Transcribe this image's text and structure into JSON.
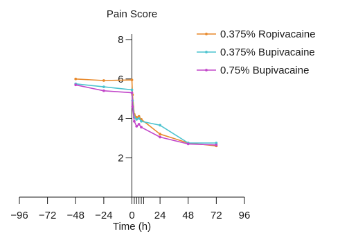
{
  "chart_data": {
    "type": "line",
    "ylabel": "Pain Score",
    "xlabel": "Time (h)",
    "xlim": [
      -96,
      96
    ],
    "ylim": [
      0,
      8
    ],
    "x_ticks": [
      -96,
      -72,
      -48,
      -24,
      0,
      24,
      48,
      72,
      96
    ],
    "x_tick_labels": [
      "−96",
      "−72",
      "−48",
      "−24",
      "0",
      "24",
      "48",
      "72",
      "96"
    ],
    "x_minor_ticks": [
      2,
      4,
      6,
      8,
      10
    ],
    "y_ticks": [
      2,
      4,
      6,
      8
    ],
    "y_tick_labels": [
      "2",
      "4",
      "6",
      "8"
    ],
    "grid": false,
    "legend_position": "top-right",
    "series": [
      {
        "name": "0.375% Ropivacaine",
        "color": "#e8892b",
        "points": [
          [
            -48,
            6.0
          ],
          [
            -24,
            5.92
          ],
          [
            0,
            5.95
          ],
          [
            0.5,
            5.2
          ],
          [
            2,
            4.2
          ],
          [
            4,
            4.05
          ],
          [
            6,
            4.1
          ],
          [
            8,
            3.95
          ],
          [
            24,
            3.2
          ],
          [
            48,
            2.75
          ],
          [
            72,
            2.6
          ]
        ]
      },
      {
        "name": "0.375% Bupivacaine",
        "color": "#4cc3cf",
        "points": [
          [
            -48,
            5.75
          ],
          [
            -24,
            5.6
          ],
          [
            0,
            5.45
          ],
          [
            0.5,
            4.9
          ],
          [
            2,
            4.05
          ],
          [
            4,
            3.95
          ],
          [
            6,
            4.0
          ],
          [
            8,
            3.85
          ],
          [
            24,
            3.65
          ],
          [
            48,
            2.75
          ],
          [
            72,
            2.75
          ]
        ]
      },
      {
        "name": "0.75% Bupivacaine",
        "color": "#c247c9",
        "points": [
          [
            -48,
            5.7
          ],
          [
            -24,
            5.4
          ],
          [
            0,
            5.3
          ],
          [
            0.5,
            4.6
          ],
          [
            2,
            3.85
          ],
          [
            4,
            3.6
          ],
          [
            6,
            3.7
          ],
          [
            8,
            3.55
          ],
          [
            24,
            3.05
          ],
          [
            48,
            2.7
          ],
          [
            72,
            2.65
          ]
        ]
      }
    ]
  }
}
